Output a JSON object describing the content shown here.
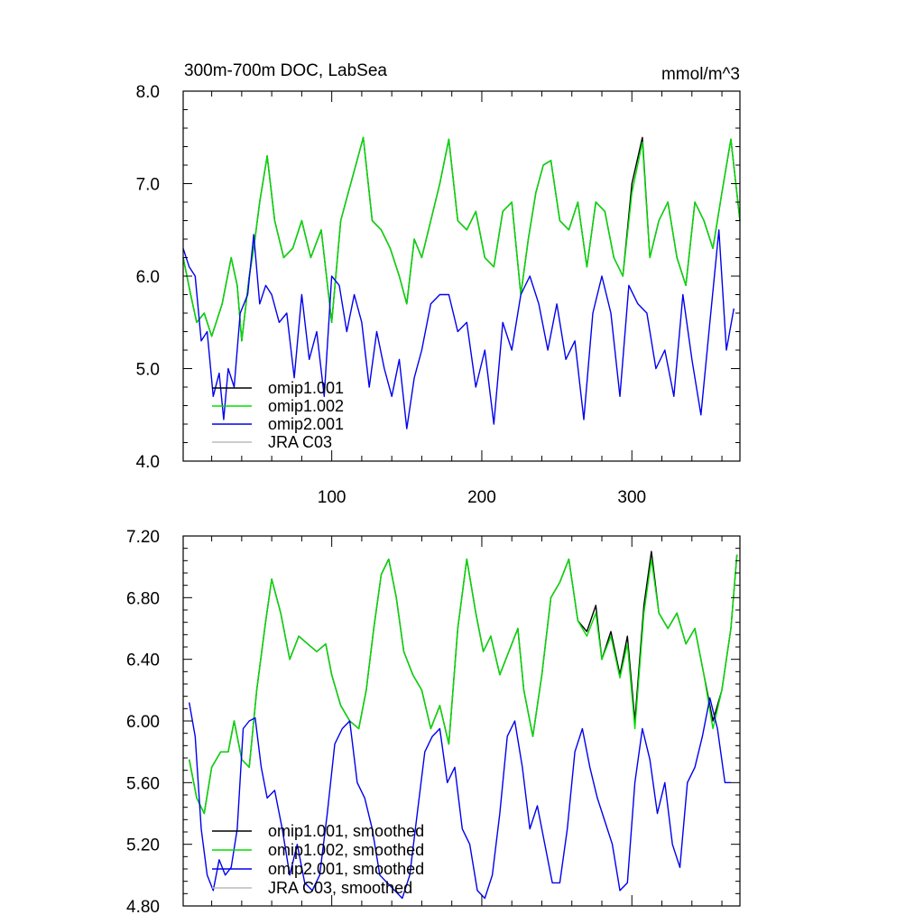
{
  "chart_data": [
    {
      "type": "line",
      "title": "300m-700m DOC, LabSea",
      "units": "mmol/m^3",
      "xlim": [
        1,
        372
      ],
      "ylim": [
        4.0,
        8.0
      ],
      "x_ticks": [
        100,
        200,
        300
      ],
      "y_ticks": [
        "4.0",
        "5.0",
        "6.0",
        "7.0",
        "8.0"
      ],
      "grid": false,
      "legend_position": "bottom-left",
      "series": [
        {
          "name": "omip1.001",
          "color": "#000000",
          "x": [
            1,
            6,
            10,
            15,
            20,
            27,
            33,
            37,
            40,
            45,
            48,
            52,
            57,
            62,
            68,
            74,
            80,
            86,
            93,
            100,
            106,
            111,
            116,
            121,
            127,
            133,
            139,
            145,
            150,
            155,
            160,
            166,
            172,
            178,
            184,
            190,
            196,
            202,
            208,
            214,
            220,
            226,
            231,
            236,
            241,
            246,
            252,
            258,
            264,
            270,
            276,
            282,
            288,
            294,
            300,
            307,
            312,
            318,
            324,
            330,
            336,
            342,
            348,
            354,
            360,
            366,
            372
          ],
          "y": [
            6.2,
            5.8,
            5.5,
            5.6,
            5.35,
            5.7,
            6.2,
            5.9,
            5.3,
            6.0,
            6.3,
            6.8,
            7.3,
            6.6,
            6.2,
            6.3,
            6.6,
            6.2,
            6.5,
            5.5,
            6.6,
            6.9,
            7.2,
            7.5,
            6.6,
            6.5,
            6.3,
            6.0,
            5.7,
            6.4,
            6.2,
            6.6,
            7.0,
            7.48,
            6.6,
            6.5,
            6.7,
            6.2,
            6.1,
            6.7,
            6.8,
            5.8,
            6.4,
            6.9,
            7.2,
            7.25,
            6.6,
            6.5,
            6.8,
            6.1,
            6.8,
            6.7,
            6.2,
            6.0,
            7.0,
            7.5,
            6.2,
            6.6,
            6.8,
            6.2,
            5.9,
            6.8,
            6.6,
            6.3,
            6.9,
            7.48,
            6.6
          ]
        },
        {
          "name": "omip1.002",
          "color": "#00dd00",
          "x": [
            1,
            6,
            10,
            15,
            20,
            27,
            33,
            37,
            40,
            45,
            48,
            52,
            57,
            62,
            68,
            74,
            80,
            86,
            93,
            100,
            106,
            111,
            116,
            121,
            127,
            133,
            139,
            145,
            150,
            155,
            160,
            166,
            172,
            178,
            184,
            190,
            196,
            202,
            208,
            214,
            220,
            226,
            231,
            236,
            241,
            246,
            252,
            258,
            264,
            270,
            276,
            282,
            288,
            294,
            300,
            307,
            312,
            318,
            324,
            330,
            336,
            342,
            348,
            354,
            360,
            366,
            372
          ],
          "y": [
            6.2,
            5.8,
            5.5,
            5.6,
            5.35,
            5.7,
            6.2,
            5.9,
            5.3,
            6.0,
            6.3,
            6.8,
            7.3,
            6.6,
            6.2,
            6.3,
            6.6,
            6.2,
            6.5,
            5.5,
            6.6,
            6.9,
            7.2,
            7.5,
            6.6,
            6.5,
            6.3,
            6.0,
            5.7,
            6.4,
            6.2,
            6.6,
            7.0,
            7.48,
            6.6,
            6.5,
            6.7,
            6.2,
            6.1,
            6.7,
            6.8,
            5.8,
            6.4,
            6.9,
            7.2,
            7.25,
            6.6,
            6.5,
            6.8,
            6.1,
            6.8,
            6.7,
            6.2,
            6.0,
            6.9,
            7.45,
            6.2,
            6.6,
            6.8,
            6.2,
            5.9,
            6.8,
            6.6,
            6.3,
            6.9,
            7.48,
            6.6
          ]
        },
        {
          "name": "omip2.001",
          "color": "#0000ee",
          "x": [
            1,
            5,
            9,
            13,
            17,
            21,
            25,
            28,
            31,
            35,
            39,
            44,
            48,
            52,
            56,
            60,
            65,
            70,
            75,
            80,
            85,
            90,
            95,
            100,
            105,
            110,
            115,
            120,
            125,
            130,
            135,
            140,
            145,
            150,
            155,
            160,
            166,
            172,
            178,
            184,
            190,
            196,
            202,
            208,
            214,
            220,
            226,
            232,
            238,
            244,
            250,
            256,
            262,
            268,
            274,
            280,
            286,
            292,
            298,
            304,
            310,
            316,
            322,
            328,
            334,
            340,
            346,
            352,
            358,
            363,
            368
          ],
          "y": [
            6.3,
            6.1,
            6.0,
            5.3,
            5.4,
            4.7,
            4.95,
            4.45,
            5.0,
            4.8,
            5.6,
            5.8,
            6.45,
            5.7,
            5.9,
            5.8,
            5.5,
            5.6,
            4.9,
            5.8,
            5.1,
            5.4,
            4.7,
            6.0,
            5.9,
            5.4,
            5.8,
            5.5,
            4.8,
            5.4,
            5.0,
            4.7,
            5.1,
            4.35,
            4.9,
            5.2,
            5.7,
            5.8,
            5.8,
            5.4,
            5.5,
            4.8,
            5.2,
            4.4,
            5.5,
            5.2,
            5.8,
            6.0,
            5.7,
            5.2,
            5.7,
            5.1,
            5.3,
            4.45,
            5.6,
            6.0,
            5.6,
            4.7,
            5.9,
            5.7,
            5.6,
            5.0,
            5.2,
            4.7,
            5.8,
            5.1,
            4.5,
            5.5,
            6.5,
            5.2,
            5.65
          ]
        },
        {
          "name": "JRA C03",
          "color": "#bbbbbb",
          "x": [],
          "y": []
        }
      ]
    },
    {
      "type": "line",
      "xlim": [
        1,
        372
      ],
      "ylim": [
        4.8,
        7.2
      ],
      "y_ticks": [
        "4.80",
        "5.20",
        "5.60",
        "6.00",
        "6.40",
        "6.80",
        "7.20"
      ],
      "grid": false,
      "legend_position": "bottom-left",
      "series": [
        {
          "name": "omip1.001, smoothed",
          "color": "#000000",
          "x": [
            5,
            10,
            15,
            20,
            26,
            31,
            35,
            40,
            45,
            50,
            56,
            60,
            66,
            72,
            78,
            84,
            90,
            96,
            100,
            106,
            112,
            118,
            123,
            128,
            133,
            138,
            143,
            148,
            154,
            160,
            166,
            172,
            178,
            184,
            190,
            196,
            201,
            206,
            212,
            218,
            224,
            228,
            234,
            240,
            246,
            252,
            258,
            264,
            270,
            276,
            280,
            286,
            292,
            297,
            302,
            308,
            313,
            318,
            324,
            330,
            336,
            342,
            348,
            354,
            360,
            366,
            370
          ],
          "y": [
            5.75,
            5.5,
            5.4,
            5.7,
            5.8,
            5.8,
            6.0,
            5.75,
            5.7,
            6.2,
            6.65,
            6.92,
            6.7,
            6.4,
            6.55,
            6.5,
            6.45,
            6.5,
            6.3,
            6.1,
            6.0,
            5.95,
            6.2,
            6.6,
            6.95,
            7.05,
            6.8,
            6.45,
            6.3,
            6.2,
            5.95,
            6.1,
            5.85,
            6.6,
            7.05,
            6.7,
            6.45,
            6.55,
            6.3,
            6.45,
            6.6,
            6.2,
            5.9,
            6.3,
            6.8,
            6.9,
            7.05,
            6.65,
            6.58,
            6.75,
            6.4,
            6.58,
            6.3,
            6.55,
            6.0,
            6.75,
            7.1,
            6.7,
            6.6,
            6.7,
            6.5,
            6.6,
            6.3,
            6.0,
            6.2,
            6.6,
            7.08
          ]
        },
        {
          "name": "omip1.002, smoothed",
          "color": "#00dd00",
          "x": [
            5,
            10,
            15,
            20,
            26,
            31,
            35,
            40,
            45,
            50,
            56,
            60,
            66,
            72,
            78,
            84,
            90,
            96,
            100,
            106,
            112,
            118,
            123,
            128,
            133,
            138,
            143,
            148,
            154,
            160,
            166,
            172,
            178,
            184,
            190,
            196,
            201,
            206,
            212,
            218,
            224,
            228,
            234,
            240,
            246,
            252,
            258,
            264,
            270,
            276,
            280,
            286,
            292,
            297,
            302,
            308,
            313,
            318,
            324,
            330,
            336,
            342,
            348,
            354,
            360,
            366,
            370
          ],
          "y": [
            5.75,
            5.5,
            5.4,
            5.7,
            5.8,
            5.8,
            6.0,
            5.75,
            5.7,
            6.2,
            6.65,
            6.92,
            6.7,
            6.4,
            6.55,
            6.5,
            6.45,
            6.5,
            6.3,
            6.1,
            6.0,
            5.95,
            6.2,
            6.6,
            6.95,
            7.05,
            6.8,
            6.45,
            6.3,
            6.2,
            5.95,
            6.1,
            5.85,
            6.6,
            7.05,
            6.7,
            6.45,
            6.55,
            6.3,
            6.45,
            6.6,
            6.2,
            5.9,
            6.3,
            6.8,
            6.9,
            7.05,
            6.65,
            6.55,
            6.7,
            6.4,
            6.55,
            6.28,
            6.5,
            5.95,
            6.7,
            7.05,
            6.7,
            6.6,
            6.7,
            6.5,
            6.6,
            6.3,
            5.95,
            6.2,
            6.6,
            7.08
          ]
        },
        {
          "name": "omip2.001, smoothed",
          "color": "#0000ee",
          "x": [
            5,
            9,
            13,
            17,
            21,
            25,
            29,
            33,
            37,
            41,
            45,
            49,
            53,
            57,
            62,
            67,
            72,
            77,
            82,
            87,
            92,
            97,
            102,
            107,
            112,
            117,
            122,
            127,
            132,
            137,
            142,
            147,
            152,
            157,
            162,
            167,
            172,
            177,
            182,
            187,
            192,
            197,
            202,
            207,
            212,
            217,
            222,
            227,
            232,
            237,
            242,
            247,
            252,
            257,
            262,
            267,
            272,
            277,
            282,
            287,
            292,
            297,
            302,
            307,
            312,
            317,
            322,
            327,
            332,
            337,
            342,
            347,
            352,
            357,
            362,
            366
          ],
          "y": [
            6.12,
            5.9,
            5.3,
            5.0,
            4.9,
            5.1,
            5.0,
            5.05,
            5.3,
            5.95,
            6.0,
            6.02,
            5.7,
            5.5,
            5.55,
            5.3,
            5.0,
            5.2,
            4.95,
            4.9,
            5.0,
            5.4,
            5.85,
            5.95,
            6.0,
            5.6,
            5.5,
            5.3,
            5.0,
            4.95,
            4.9,
            4.85,
            5.0,
            5.4,
            5.8,
            5.9,
            5.95,
            5.6,
            5.7,
            5.3,
            5.2,
            4.9,
            4.85,
            5.0,
            5.4,
            5.9,
            6.0,
            5.7,
            5.3,
            5.45,
            5.2,
            4.95,
            4.95,
            5.3,
            5.8,
            5.95,
            5.7,
            5.5,
            5.35,
            5.2,
            4.9,
            4.95,
            5.6,
            5.95,
            5.75,
            5.4,
            5.6,
            5.2,
            5.05,
            5.6,
            5.7,
            5.9,
            6.15,
            5.95,
            5.6,
            5.6
          ]
        },
        {
          "name": "JRA C03, smoothed",
          "color": "#bbbbbb",
          "x": [],
          "y": []
        }
      ]
    }
  ]
}
